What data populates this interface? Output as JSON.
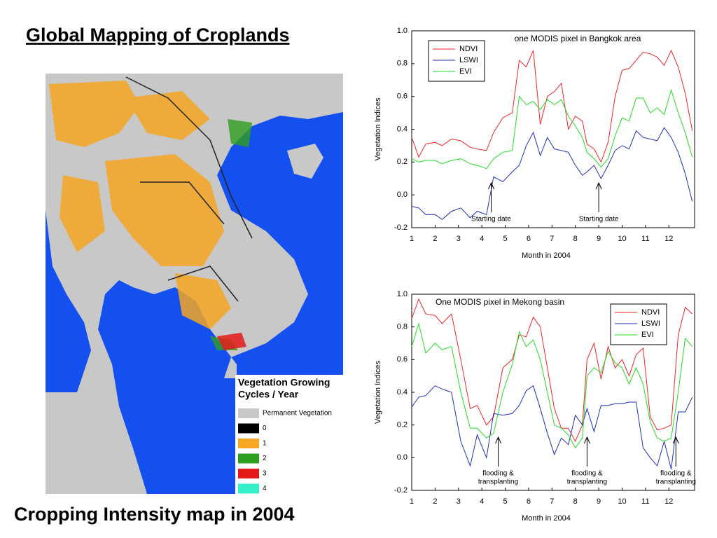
{
  "slide": {
    "title": "Global Mapping of Croplands",
    "caption": "Cropping Intensity map in 2004",
    "map_legend": {
      "title": [
        "Vegetation Growing",
        "Cycles / Year"
      ],
      "items": [
        {
          "label": "Permanent Vegetation",
          "color": "#c8c8c8"
        },
        {
          "label": "0",
          "color": "#000000"
        },
        {
          "label": "1",
          "color": "#f5a623"
        },
        {
          "label": "2",
          "color": "#2e9e1e"
        },
        {
          "label": "3",
          "color": "#e41a1a"
        },
        {
          "label": "4",
          "color": "#33f0c8"
        }
      ]
    }
  },
  "chart_data": [
    {
      "type": "line",
      "title": "one MODIS pixel in Bangkok area",
      "xlabel": "Month in 2004",
      "ylabel": "Vegetation Indices",
      "xlim": [
        1,
        13.1
      ],
      "ylim": [
        -0.2,
        1.0
      ],
      "xticks": [
        1,
        2,
        3,
        4,
        5,
        6,
        7,
        8,
        9,
        10,
        11,
        12
      ],
      "yticks": [
        {
          "value": -0.2,
          "label": "-0.2"
        },
        {
          "value": 0,
          "label": "0.0"
        },
        0.2,
        0.4,
        0.6,
        0.8,
        {
          "value": 1,
          "label": "1.0"
        }
      ],
      "legend": "upper left",
      "x": [
        1.0,
        1.3,
        1.6,
        2.0,
        2.3,
        2.7,
        3.1,
        3.5,
        3.8,
        4.2,
        4.5,
        4.9,
        5.3,
        5.6,
        5.9,
        6.2,
        6.5,
        6.8,
        7.1,
        7.4,
        7.7,
        8.0,
        8.3,
        8.5,
        8.8,
        9.1,
        9.4,
        9.7,
        10.0,
        10.3,
        10.6,
        10.9,
        11.2,
        11.5,
        11.8,
        12.1,
        12.4,
        12.7,
        13.0
      ],
      "series": [
        {
          "name": "NDVI",
          "color": "#e8262a",
          "values": [
            0.35,
            0.23,
            0.31,
            0.32,
            0.3,
            0.34,
            0.33,
            0.29,
            0.28,
            0.27,
            0.38,
            0.47,
            0.5,
            0.82,
            0.78,
            0.88,
            0.43,
            0.6,
            0.63,
            0.68,
            0.4,
            0.48,
            0.45,
            0.31,
            0.28,
            0.2,
            0.32,
            0.6,
            0.76,
            0.77,
            0.82,
            0.87,
            0.86,
            0.84,
            0.79,
            0.88,
            0.78,
            0.62,
            0.39
          ]
        },
        {
          "name": "LSWI",
          "color": "#1f2fb8",
          "values": [
            -0.07,
            -0.08,
            -0.12,
            -0.12,
            -0.15,
            -0.1,
            -0.08,
            -0.14,
            -0.1,
            -0.12,
            0.11,
            0.08,
            0.14,
            0.18,
            0.3,
            0.38,
            0.24,
            0.35,
            0.28,
            0.27,
            0.26,
            0.18,
            0.12,
            0.14,
            0.18,
            0.1,
            0.18,
            0.27,
            0.3,
            0.28,
            0.39,
            0.35,
            0.34,
            0.33,
            0.41,
            0.35,
            0.26,
            0.13,
            -0.04
          ]
        },
        {
          "name": "EVI",
          "color": "#22dd22",
          "values": [
            0.22,
            0.2,
            0.21,
            0.21,
            0.19,
            0.21,
            0.22,
            0.19,
            0.18,
            0.16,
            0.22,
            0.26,
            0.27,
            0.6,
            0.55,
            0.57,
            0.52,
            0.58,
            0.55,
            0.58,
            0.48,
            0.42,
            0.35,
            0.26,
            0.22,
            0.17,
            0.22,
            0.36,
            0.47,
            0.45,
            0.59,
            0.59,
            0.5,
            0.53,
            0.49,
            0.64,
            0.5,
            0.38,
            0.23
          ]
        }
      ],
      "annotations": [
        {
          "text": [
            "Starting date"
          ],
          "x": 4.4
        },
        {
          "text": [
            "Starting date"
          ],
          "x": 9.0
        }
      ]
    },
    {
      "type": "line",
      "title": "One MODIS pixel in Mekong basin",
      "xlabel": "Month in 2004",
      "ylabel": "Vegetation Indices",
      "xlim": [
        1,
        13.1
      ],
      "ylim": [
        -0.2,
        1.0
      ],
      "xticks": [
        1,
        2,
        3,
        4,
        5,
        6,
        7,
        8,
        9,
        10,
        11,
        12
      ],
      "yticks": [
        {
          "value": -0.2,
          "label": "-0.2"
        },
        {
          "value": 0,
          "label": "0.0"
        },
        0.2,
        0.4,
        0.6,
        0.8,
        {
          "value": 1,
          "label": "1.0"
        }
      ],
      "legend": "upper right",
      "x": [
        1.0,
        1.3,
        1.6,
        2.0,
        2.3,
        2.7,
        3.1,
        3.5,
        3.8,
        4.2,
        4.5,
        4.9,
        5.3,
        5.6,
        5.9,
        6.2,
        6.5,
        6.8,
        7.1,
        7.4,
        7.7,
        8.0,
        8.3,
        8.5,
        8.8,
        9.1,
        9.4,
        9.7,
        10.0,
        10.3,
        10.6,
        10.9,
        11.2,
        11.5,
        11.8,
        12.1,
        12.4,
        12.7,
        13.0
      ],
      "series": [
        {
          "name": "NDVI",
          "color": "#e8262a",
          "values": [
            0.85,
            0.97,
            0.88,
            0.87,
            0.82,
            0.88,
            0.6,
            0.3,
            0.32,
            0.2,
            0.25,
            0.55,
            0.6,
            0.75,
            0.74,
            0.86,
            0.8,
            0.55,
            0.3,
            0.18,
            0.18,
            0.1,
            0.2,
            0.6,
            0.7,
            0.48,
            0.68,
            0.55,
            0.6,
            0.5,
            0.63,
            0.67,
            0.25,
            0.17,
            0.18,
            0.2,
            0.75,
            0.92,
            0.88
          ]
        },
        {
          "name": "LSWI",
          "color": "#1f2fb8",
          "values": [
            0.31,
            0.37,
            0.38,
            0.44,
            0.42,
            0.4,
            0.1,
            -0.05,
            0.14,
            0.0,
            0.27,
            0.26,
            0.27,
            0.32,
            0.41,
            0.44,
            0.3,
            0.15,
            0.02,
            0.12,
            0.08,
            0.26,
            0.2,
            0.3,
            0.16,
            0.32,
            0.32,
            0.33,
            0.33,
            0.34,
            0.34,
            0.06,
            0.0,
            -0.05,
            0.1,
            -0.07,
            0.28,
            0.28,
            0.37
          ]
        },
        {
          "name": "EVI",
          "color": "#22dd22",
          "values": [
            0.68,
            0.82,
            0.64,
            0.7,
            0.66,
            0.68,
            0.4,
            0.18,
            0.18,
            0.12,
            0.15,
            0.4,
            0.57,
            0.77,
            0.68,
            0.72,
            0.6,
            0.4,
            0.2,
            0.18,
            0.14,
            0.06,
            0.12,
            0.5,
            0.55,
            0.52,
            0.65,
            0.58,
            0.55,
            0.45,
            0.55,
            0.45,
            0.22,
            0.12,
            0.1,
            0.12,
            0.4,
            0.73,
            0.68
          ]
        }
      ],
      "annotations": [
        {
          "text": [
            "flooding &",
            "transplanting"
          ],
          "x": 4.7
        },
        {
          "text": [
            "flooding &",
            "transplanting"
          ],
          "x": 8.5
        },
        {
          "text": [
            "flooding &",
            "transplanting"
          ],
          "x": 12.3
        }
      ]
    }
  ]
}
